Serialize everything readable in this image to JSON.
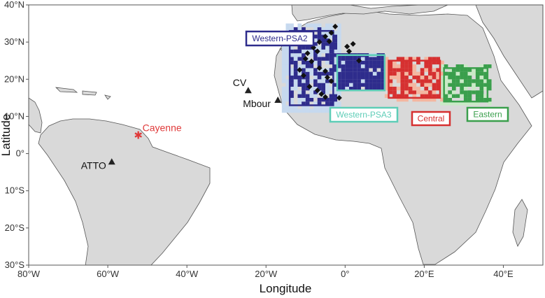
{
  "map": {
    "x_axis_title": "Longitude",
    "y_axis_title": "Latitude",
    "x_range_deg": [
      -80,
      50
    ],
    "y_range_deg": [
      -30,
      40
    ],
    "x_ticks": [
      {
        "lon": -80,
        "label": "80°W"
      },
      {
        "lon": -60,
        "label": "60°W"
      },
      {
        "lon": -40,
        "label": "40°W"
      },
      {
        "lon": -20,
        "label": "20°W"
      },
      {
        "lon": 0,
        "label": "0°"
      },
      {
        "lon": 20,
        "label": "20°E"
      },
      {
        "lon": 40,
        "label": "40°E"
      }
    ],
    "y_ticks": [
      {
        "lat": 40,
        "label": "40°N"
      },
      {
        "lat": 30,
        "label": "30°N"
      },
      {
        "lat": 20,
        "label": "20°N"
      },
      {
        "lat": 10,
        "label": "10°N"
      },
      {
        "lat": 0,
        "label": "0°"
      },
      {
        "lat": -10,
        "label": "10°S"
      },
      {
        "lat": -20,
        "label": "20°S"
      },
      {
        "lat": -30,
        "label": "30°S"
      }
    ],
    "colors": {
      "ocean": "#ffffff",
      "land": "#d9d9d9",
      "coast": "#555555",
      "panel_border": "#555555",
      "western_psa2": "#2e2c8c",
      "western_psa2_light": "#c6d9ef",
      "western_psa3": "#5ecdb7",
      "central": "#d63030",
      "central_light": "#f4b6a0",
      "eastern": "#3a9f4c",
      "eastern_light": "#c9eac6",
      "cayenne": "#e03a3a",
      "site_marker": "#222222",
      "sample_diamond": "#111111"
    },
    "sites": [
      {
        "name": "CV",
        "lon": -24.5,
        "lat": 17.0,
        "symbol": "triangle"
      },
      {
        "name": "Mbour",
        "lon": -17.0,
        "lat": 14.4,
        "symbol": "triangle"
      },
      {
        "name": "ATTO",
        "lon": -59.0,
        "lat": -2.2,
        "symbol": "triangle"
      },
      {
        "name": "Cayenne",
        "lon": -52.3,
        "lat": 4.9,
        "symbol": "star"
      }
    ],
    "regions": [
      {
        "name": "Western-PSA2",
        "lon": [
          -14,
          -3
        ],
        "lat": [
          13,
          33
        ],
        "color_key": "western_psa2"
      },
      {
        "name": "Western-PSA3",
        "lon": [
          -2,
          10
        ],
        "lat": [
          17,
          26.5
        ],
        "color_key": "western_psa3"
      },
      {
        "name": "Central",
        "lon": [
          11,
          24
        ],
        "lat": [
          15,
          25
        ],
        "color_key": "central"
      },
      {
        "name": "Eastern",
        "lon": [
          25,
          36
        ],
        "lat": [
          14,
          23
        ],
        "color_key": "eastern"
      }
    ],
    "sample_points": [
      [
        -2.5,
        34.2
      ],
      [
        -3.5,
        32.5
      ],
      [
        -5.0,
        31.5
      ],
      [
        -4.0,
        30.2
      ],
      [
        -6.5,
        30.0
      ],
      [
        -8.0,
        28.5
      ],
      [
        -9.5,
        27.0
      ],
      [
        -7.0,
        27.5
      ],
      [
        -10.0,
        25.5
      ],
      [
        -8.5,
        24.8
      ],
      [
        -11.5,
        22.5
      ],
      [
        -10.5,
        21.0
      ],
      [
        -6.5,
        23.0
      ],
      [
        -5.0,
        22.2
      ],
      [
        -4.5,
        20.5
      ],
      [
        -3.5,
        19.5
      ],
      [
        -9.0,
        18.0
      ],
      [
        -7.0,
        17.0
      ],
      [
        -6.0,
        16.0
      ],
      [
        -5.0,
        15.2
      ],
      [
        0.5,
        28.8
      ],
      [
        1.0,
        27.5
      ],
      [
        2.0,
        29.5
      ],
      [
        -1.5,
        15.0
      ],
      [
        3.5,
        25.0
      ]
    ]
  }
}
